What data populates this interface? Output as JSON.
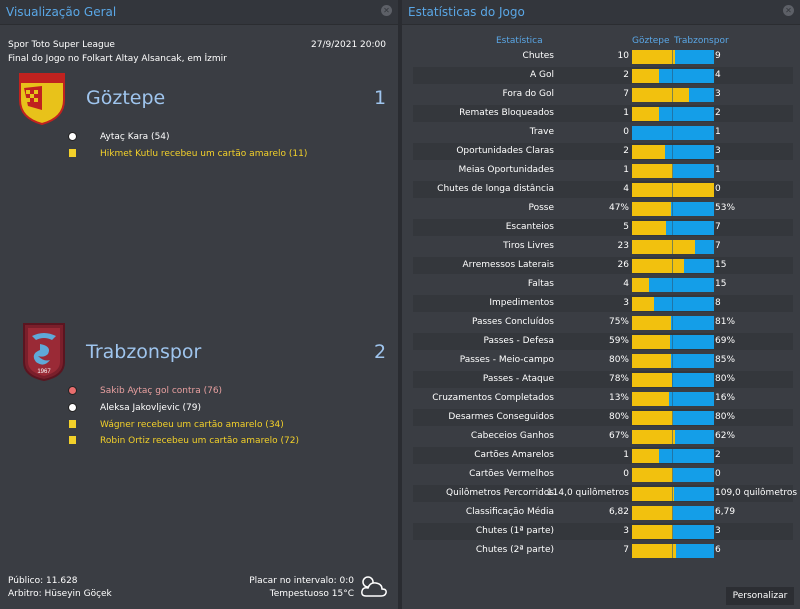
{
  "overview": {
    "title": "Visualização Geral",
    "competition": "Spor Toto Super League",
    "datetime": "27/9/2021 20:00",
    "venue": "Final do Jogo no Folkart Altay Alsancak, em İzmir",
    "home": {
      "name": "Göztepe",
      "score": "1",
      "events": [
        {
          "type": "goal",
          "text": "Aytaç Kara (54)"
        },
        {
          "type": "yellow",
          "text": "Hikmet Kutlu recebeu um cartão amarelo (11)"
        }
      ]
    },
    "away": {
      "name": "Trabzonspor",
      "score": "2",
      "events": [
        {
          "type": "own-goal",
          "text": "Sakib Aytaç gol contra (76)"
        },
        {
          "type": "goal",
          "text": "Aleksa Jakovljevic (79)"
        },
        {
          "type": "yellow",
          "text": "Wágner recebeu um cartão amarelo (34)"
        },
        {
          "type": "yellow",
          "text": "Robin Ortiz recebeu um cartão amarelo (72)"
        }
      ]
    },
    "attendance": "Público: 11.628",
    "referee": "Arbitro: Hüseyin Göçek",
    "halftime": "Placar no intervalo: 0:0",
    "weather": "Tempestuoso 15°C"
  },
  "stats": {
    "title": "Estatísticas do Jogo",
    "col_stat": "Estatística",
    "col_home": "Göztepe",
    "col_away": "Trabzonspor",
    "button": "Personalizar",
    "rows": [
      {
        "label": "Chutes",
        "home": "10",
        "away": "9",
        "share": 0.53
      },
      {
        "label": "A Gol",
        "home": "2",
        "away": "4",
        "share": 0.33
      },
      {
        "label": "Fora do Gol",
        "home": "7",
        "away": "3",
        "share": 0.7
      },
      {
        "label": "Remates Bloqueados",
        "home": "1",
        "away": "2",
        "share": 0.33
      },
      {
        "label": "Trave",
        "home": "0",
        "away": "1",
        "share": 0.0
      },
      {
        "label": "Oportunidades Claras",
        "home": "2",
        "away": "3",
        "share": 0.4
      },
      {
        "label": "Meias Oportunidades",
        "home": "1",
        "away": "1",
        "share": 0.5
      },
      {
        "label": "Chutes de longa distância",
        "home": "4",
        "away": "0",
        "share": 1.0
      },
      {
        "label": "Posse",
        "home": "47%",
        "away": "53%",
        "share": 0.47
      },
      {
        "label": "Escanteios",
        "home": "5",
        "away": "7",
        "share": 0.42
      },
      {
        "label": "Tiros Livres",
        "home": "23",
        "away": "7",
        "share": 0.77
      },
      {
        "label": "Arremessos Laterais",
        "home": "26",
        "away": "15",
        "share": 0.63
      },
      {
        "label": "Faltas",
        "home": "4",
        "away": "15",
        "share": 0.21
      },
      {
        "label": "Impedimentos",
        "home": "3",
        "away": "8",
        "share": 0.27
      },
      {
        "label": "Passes Concluídos",
        "home": "75%",
        "away": "81%",
        "share": 0.48
      },
      {
        "label": "Passes - Defesa",
        "home": "59%",
        "away": "69%",
        "share": 0.46
      },
      {
        "label": "Passes - Meio-campo",
        "home": "80%",
        "away": "85%",
        "share": 0.48
      },
      {
        "label": "Passes - Ataque",
        "home": "78%",
        "away": "80%",
        "share": 0.49
      },
      {
        "label": "Cruzamentos Completados",
        "home": "13%",
        "away": "16%",
        "share": 0.45
      },
      {
        "label": "Desarmes Conseguidos",
        "home": "80%",
        "away": "80%",
        "share": 0.5
      },
      {
        "label": "Cabeceios Ganhos",
        "home": "67%",
        "away": "62%",
        "share": 0.52
      },
      {
        "label": "Cartões Amarelos",
        "home": "1",
        "away": "2",
        "share": 0.33
      },
      {
        "label": "Cartões Vermelhos",
        "home": "0",
        "away": "0",
        "share": 0.5
      },
      {
        "label": "Quilômetros Percorridos",
        "home": "114,0 quilômetros",
        "away": "109,0 quilômetros",
        "share": 0.51
      },
      {
        "label": "Classificação Média",
        "home": "6,82",
        "away": "6,79",
        "share": 0.5
      },
      {
        "label": "Chutes (1ª parte)",
        "home": "3",
        "away": "3",
        "share": 0.5
      },
      {
        "label": "Chutes (2ª parte)",
        "home": "7",
        "away": "6",
        "share": 0.54
      }
    ]
  },
  "colors": {
    "home": "#f2c10e",
    "away": "#149ee8",
    "accent": "#5aa7e6"
  }
}
